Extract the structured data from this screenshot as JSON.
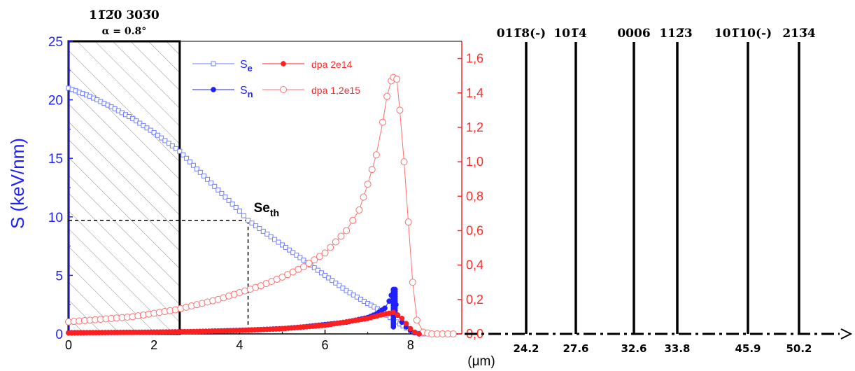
{
  "chart_data": [
    {
      "type": "scatter",
      "xunit": "(μm)",
      "xlim": [
        0,
        9.2
      ],
      "xticks": [
        "0",
        "2",
        "4",
        "6",
        "8"
      ],
      "ylabel": "S (keV/nm)",
      "ylim": [
        0,
        25
      ],
      "yticks": [
        "0",
        "5",
        "10",
        "15",
        "20",
        "25"
      ],
      "y2lim": [
        0,
        1.7
      ],
      "y2ticks": [
        "0,0",
        "0,2",
        "0,4",
        "0,6",
        "0,8",
        "1,0",
        "1,2",
        "1,4",
        "1,6"
      ],
      "region": {
        "x_start": 0,
        "x_end": 2.6,
        "label_top": "11̅2̅0 303̅0",
        "label_alpha": "α = 0.8°"
      },
      "threshold": {
        "x": 4.2,
        "y": 9.7,
        "label_main": "Se",
        "label_sub": "th"
      },
      "legend": {
        "placement": "top-center",
        "entries": [
          {
            "id": "se",
            "label_main": "S",
            "label_sub": "e"
          },
          {
            "id": "sn",
            "label_main": "S",
            "label_sub": "n"
          },
          {
            "id": "dpa1",
            "label": "dpa 2e14"
          },
          {
            "id": "dpa2",
            "label": "dpa 1,2e15"
          }
        ]
      },
      "series": [
        {
          "id": "se",
          "color": "#6f7fff",
          "marker": "open-square",
          "axis": "left",
          "points": [
            [
              0,
              21.0
            ],
            [
              0.5,
              20.3
            ],
            [
              1.0,
              19.4
            ],
            [
              1.5,
              18.4
            ],
            [
              2.0,
              17.2
            ],
            [
              2.6,
              15.6
            ],
            [
              3.0,
              14.1
            ],
            [
              3.5,
              12.3
            ],
            [
              4.0,
              10.5
            ],
            [
              4.2,
              9.7
            ],
            [
              5.0,
              7.6
            ],
            [
              5.5,
              6.3
            ],
            [
              6.0,
              5.0
            ],
            [
              6.5,
              3.7
            ],
            [
              7.0,
              2.6
            ],
            [
              7.3,
              2.0
            ],
            [
              7.6,
              1.2
            ],
            [
              7.9,
              0.5
            ],
            [
              8.1,
              0.1
            ],
            [
              8.3,
              0.0
            ]
          ]
        },
        {
          "id": "sn",
          "color": "#1f1fff",
          "marker": "filled-circle",
          "axis": "left",
          "points": [
            [
              0,
              0.1
            ],
            [
              1,
              0.12
            ],
            [
              2,
              0.15
            ],
            [
              3,
              0.2
            ],
            [
              4,
              0.3
            ],
            [
              5,
              0.45
            ],
            [
              5.5,
              0.6
            ],
            [
              6,
              0.8
            ],
            [
              6.5,
              1.0
            ],
            [
              7,
              1.4
            ],
            [
              7.2,
              1.7
            ],
            [
              7.4,
              2.2
            ],
            [
              7.5,
              2.8
            ],
            [
              7.55,
              3.3
            ],
            [
              7.6,
              3.8
            ],
            [
              7.63,
              3.5
            ],
            [
              7.66,
              2.5
            ],
            [
              7.7,
              1.6
            ],
            [
              7.8,
              1.0
            ],
            [
              7.9,
              0.6
            ],
            [
              8.0,
              0.3
            ],
            [
              8.1,
              0.1
            ],
            [
              8.2,
              0.0
            ]
          ]
        },
        {
          "id": "dpa1",
          "color": "#ff1f1f",
          "marker": "filled-circle",
          "axis": "right",
          "points": [
            [
              0,
              0.005
            ],
            [
              1,
              0.008
            ],
            [
              2,
              0.01
            ],
            [
              3,
              0.014
            ],
            [
              4,
              0.02
            ],
            [
              5,
              0.03
            ],
            [
              5.5,
              0.04
            ],
            [
              6,
              0.05
            ],
            [
              6.5,
              0.07
            ],
            [
              7,
              0.09
            ],
            [
              7.3,
              0.11
            ],
            [
              7.5,
              0.12
            ],
            [
              7.6,
              0.125
            ],
            [
              7.7,
              0.11
            ],
            [
              7.8,
              0.09
            ],
            [
              7.9,
              0.06
            ],
            [
              8.0,
              0.03
            ],
            [
              8.1,
              0.01
            ],
            [
              8.2,
              0.0
            ]
          ]
        },
        {
          "id": "dpa2",
          "color": "#ff6f6f",
          "marker": "open-circle",
          "axis": "right",
          "points": [
            [
              0,
              0.07
            ],
            [
              0.5,
              0.08
            ],
            [
              1,
              0.09
            ],
            [
              1.5,
              0.1
            ],
            [
              2,
              0.12
            ],
            [
              2.5,
              0.14
            ],
            [
              3,
              0.17
            ],
            [
              3.5,
              0.2
            ],
            [
              4,
              0.24
            ],
            [
              4.5,
              0.28
            ],
            [
              5,
              0.33
            ],
            [
              5.5,
              0.39
            ],
            [
              6,
              0.47
            ],
            [
              6.5,
              0.6
            ],
            [
              6.8,
              0.72
            ],
            [
              7.0,
              0.87
            ],
            [
              7.2,
              1.04
            ],
            [
              7.35,
              1.23
            ],
            [
              7.45,
              1.38
            ],
            [
              7.55,
              1.47
            ],
            [
              7.6,
              1.49
            ],
            [
              7.68,
              1.48
            ],
            [
              7.75,
              1.3
            ],
            [
              7.85,
              1.0
            ],
            [
              7.95,
              0.65
            ],
            [
              8.05,
              0.3
            ],
            [
              8.15,
              0.08
            ],
            [
              8.3,
              0.01
            ],
            [
              8.5,
              0.0
            ],
            [
              9.0,
              0.0
            ]
          ]
        }
      ]
    },
    {
      "type": "diagram",
      "reflections": [
        {
          "label": "011̅8(-)",
          "position": "24.2"
        },
        {
          "label": "101̅4",
          "position": "27.6"
        },
        {
          "label": "0006",
          "position": "32.6"
        },
        {
          "label": "112̅3",
          "position": "33.8"
        },
        {
          "label": "101̅10(-)",
          "position": "45.9"
        },
        {
          "label": "213̅4",
          "position": "50.2"
        }
      ]
    }
  ]
}
